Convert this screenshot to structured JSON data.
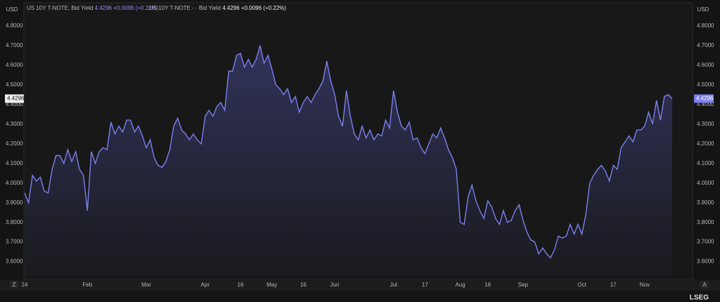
{
  "header": {
    "currency_left": "USD",
    "currency_right": "USD",
    "legend_name": "US 10Y T-NOTE, Bid Yield",
    "legend_change": "+0.0096 (+0.22%)",
    "legend2_name": "US 10Y T-NOTE - · Bid Yield",
    "legend2_change": "+0.0096 (+0.22%)"
  },
  "footer": {
    "zoom_left": "Z",
    "zoom_right": "A",
    "brand": "LSEG"
  },
  "chart_data": {
    "type": "area",
    "color": "#7b80f0",
    "categories": [
      "24",
      null,
      null,
      null,
      null,
      null,
      null,
      null,
      null,
      null,
      null,
      null,
      null,
      null,
      null,
      null,
      "Feb",
      null,
      null,
      null,
      null,
      null,
      null,
      null,
      null,
      null,
      null,
      null,
      null,
      null,
      null,
      "Mar",
      null,
      null,
      null,
      null,
      null,
      null,
      null,
      null,
      null,
      null,
      null,
      null,
      null,
      null,
      "Apr",
      null,
      null,
      null,
      null,
      null,
      null,
      null,
      null,
      "16",
      null,
      null,
      null,
      null,
      null,
      null,
      null,
      "May",
      null,
      null,
      null,
      null,
      null,
      null,
      null,
      "16",
      null,
      null,
      null,
      null,
      null,
      null,
      null,
      "Jun",
      null,
      null,
      null,
      null,
      null,
      null,
      null,
      null,
      null,
      null,
      null,
      null,
      null,
      null,
      "Jul",
      null,
      null,
      null,
      null,
      null,
      null,
      null,
      "17",
      null,
      null,
      null,
      null,
      null,
      null,
      null,
      null,
      "Aug",
      null,
      null,
      null,
      null,
      null,
      null,
      "16",
      null,
      null,
      null,
      null,
      null,
      null,
      null,
      null,
      "Sep",
      null,
      null,
      null,
      null,
      null,
      null,
      null,
      null,
      null,
      null,
      null,
      null,
      null,
      null,
      "Oct",
      null,
      null,
      null,
      null,
      null,
      null,
      null,
      "17",
      null,
      null,
      null,
      null,
      null,
      null,
      null,
      "Nov",
      null,
      null,
      null,
      null,
      null,
      null,
      null
    ],
    "values": [
      3.95,
      3.9,
      4.04,
      4.01,
      4.03,
      3.96,
      3.95,
      4.07,
      4.14,
      4.14,
      4.1,
      4.17,
      4.11,
      4.16,
      4.07,
      4.04,
      3.86,
      4.16,
      4.1,
      4.16,
      4.18,
      4.17,
      4.31,
      4.25,
      4.29,
      4.26,
      4.32,
      4.32,
      4.26,
      4.29,
      4.24,
      4.18,
      4.22,
      4.13,
      4.09,
      4.08,
      4.11,
      4.17,
      4.29,
      4.33,
      4.27,
      4.25,
      4.22,
      4.25,
      4.22,
      4.2,
      4.34,
      4.37,
      4.34,
      4.39,
      4.41,
      4.37,
      4.57,
      4.57,
      4.65,
      4.66,
      4.59,
      4.63,
      4.59,
      4.63,
      4.7,
      4.61,
      4.65,
      4.58,
      4.5,
      4.48,
      4.45,
      4.48,
      4.41,
      4.44,
      4.36,
      4.41,
      4.44,
      4.41,
      4.45,
      4.48,
      4.52,
      4.62,
      4.52,
      4.45,
      4.34,
      4.29,
      4.47,
      4.34,
      4.25,
      4.22,
      4.29,
      4.23,
      4.27,
      4.22,
      4.25,
      4.24,
      4.32,
      4.28,
      4.47,
      4.36,
      4.29,
      4.27,
      4.31,
      4.22,
      4.23,
      4.18,
      4.15,
      4.2,
      4.25,
      4.23,
      4.28,
      4.23,
      4.17,
      4.13,
      4.07,
      3.8,
      3.79,
      3.93,
      3.99,
      3.91,
      3.86,
      3.82,
      3.91,
      3.88,
      3.82,
      3.79,
      3.86,
      3.8,
      3.81,
      3.86,
      3.89,
      3.81,
      3.75,
      3.71,
      3.7,
      3.64,
      3.67,
      3.64,
      3.62,
      3.66,
      3.73,
      3.72,
      3.73,
      3.79,
      3.74,
      3.79,
      3.74,
      3.84,
      4.0,
      4.04,
      4.07,
      4.09,
      4.06,
      4.01,
      4.09,
      4.07,
      4.18,
      4.21,
      4.24,
      4.21,
      4.27,
      4.27,
      4.29,
      4.36,
      4.3,
      4.42,
      4.32,
      4.44,
      4.45,
      4.4296
    ],
    "ylim": [
      3.52,
      4.86
    ],
    "yticks": [
      {
        "value": 3.6,
        "label": "3.6000"
      },
      {
        "value": 3.7,
        "label": "3.7000"
      },
      {
        "value": 3.8,
        "label": "3.8000"
      },
      {
        "value": 3.9,
        "label": "3.9000"
      },
      {
        "value": 4.0,
        "label": "4.0000"
      },
      {
        "value": 4.1,
        "label": "4.1000"
      },
      {
        "value": 4.2,
        "label": "4.2000"
      },
      {
        "value": 4.3,
        "label": "4.3000"
      },
      {
        "value": 4.4,
        "label": "4.4000"
      },
      {
        "value": 4.5,
        "label": "4.5000"
      },
      {
        "value": 4.6,
        "label": "4.6000"
      },
      {
        "value": 4.7,
        "label": "4.7000"
      },
      {
        "value": 4.8,
        "label": "4.8000"
      }
    ],
    "grid": false
  }
}
